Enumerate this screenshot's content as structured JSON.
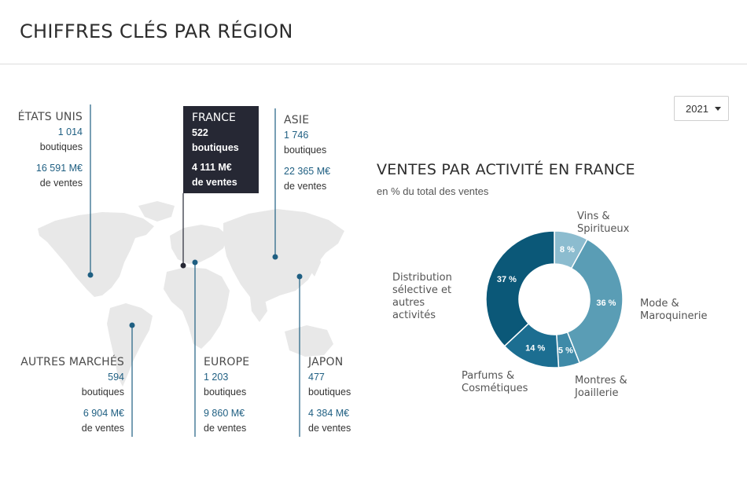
{
  "page": {
    "title": "CHIFFRES CLÉS PAR RÉGION"
  },
  "filter": {
    "year": "2021"
  },
  "regions": {
    "etats_unis": {
      "name": "ÉTATS UNIS",
      "stores": "1 014",
      "stores_label": "boutiques",
      "sales": "16 591 M€",
      "sales_label": "de ventes"
    },
    "france": {
      "name": "FRANCE",
      "stores": "522",
      "stores_label": "boutiques",
      "sales": "4 111 M€",
      "sales_label": "de ventes"
    },
    "asie": {
      "name": "ASIE",
      "stores": "1 746",
      "stores_label": "boutiques",
      "sales": "22 365 M€",
      "sales_label": "de ventes"
    },
    "autres": {
      "name": "AUTRES MARCHÉS",
      "stores": "594",
      "stores_label": "boutiques",
      "sales": "6 904 M€",
      "sales_label": "de ventes"
    },
    "europe": {
      "name": "EUROPE",
      "stores": "1 203",
      "stores_label": "boutiques",
      "sales": "9 860 M€",
      "sales_label": "de ventes"
    },
    "japon": {
      "name": "JAPON",
      "stores": "477",
      "stores_label": "boutiques",
      "sales": "4 384 M€",
      "sales_label": "de ventes"
    }
  },
  "chart_data": {
    "type": "pie",
    "title": "VENTES PAR ACTIVITÉ EN FRANCE",
    "subtitle": "en % du total des ventes",
    "slices": [
      {
        "label": "Vins & Spiritueux",
        "value": 8,
        "display": "8 %",
        "color": "#8cbccf"
      },
      {
        "label": "Mode & Maroquinerie",
        "value": 36,
        "display": "36 %",
        "color": "#5a9db5"
      },
      {
        "label": "Montres & Joaillerie",
        "value": 5,
        "display": "5 %",
        "color": "#3f8aa8"
      },
      {
        "label": "Parfums & Cosmétiques",
        "value": 14,
        "display": "14 %",
        "color": "#1c6e91"
      },
      {
        "label": "Distribution sélective et autres activités",
        "value": 37,
        "display": "37 %",
        "color": "#0b5878"
      }
    ]
  }
}
